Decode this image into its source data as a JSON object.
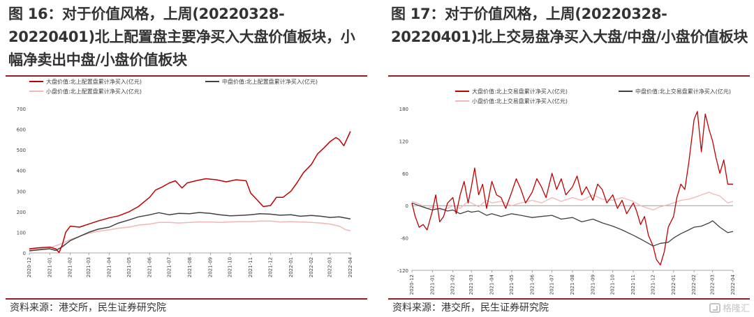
{
  "figures": [
    {
      "title": "图 16：对于价值风格，上周(20220328-20220401)北上配置盘主要净买入大盘价值板块，小幅净卖出中盘/小盘价值板块"
    },
    {
      "title": "图 17：对于价值风格，上周(20220328-20220401)北上交易盘净买入大盘/中盘/小盘价值板块"
    }
  ],
  "source": "资料来源：港交所，民生证券研究院",
  "watermark": "格隆汇",
  "colors": {
    "large": "#c00000",
    "mid": "#404040",
    "small": "#f2b6b6",
    "accent": "#9b1b1e",
    "text": "#333333"
  },
  "chart_data": [
    {
      "type": "line",
      "ylim": [
        0,
        700
      ],
      "yticks": [
        0,
        100,
        200,
        300,
        400,
        500,
        600,
        700
      ],
      "xlim": [
        "2020-12",
        "2022-04"
      ],
      "xticks": [
        "2020-12",
        "2021-01",
        "2021-02",
        "2021-03",
        "2021-04",
        "2021-05",
        "2021-06",
        "2021-07",
        "2021-08",
        "2021-09",
        "2021-10",
        "2021-11",
        "2021-12",
        "2022-01",
        "2022-02",
        "2022-03",
        "2022-04"
      ],
      "legend": "top",
      "series": [
        {
          "name": "大盘价值:北上配置盘累计净买入(亿元)",
          "color": "#c00000",
          "width": 1.5,
          "x": [
            "2020-12-01",
            "2020-12-15",
            "2021-01-01",
            "2021-01-10",
            "2021-01-15",
            "2021-01-20",
            "2021-01-25",
            "2021-02-01",
            "2021-02-15",
            "2021-03-01",
            "2021-03-15",
            "2021-04-01",
            "2021-04-15",
            "2021-05-01",
            "2021-05-15",
            "2021-06-01",
            "2021-06-10",
            "2021-06-20",
            "2021-07-01",
            "2021-07-10",
            "2021-07-20",
            "2021-07-28",
            "2021-08-10",
            "2021-08-25",
            "2021-09-10",
            "2021-09-25",
            "2021-10-10",
            "2021-10-25",
            "2021-11-01",
            "2021-11-10",
            "2021-11-20",
            "2021-12-01",
            "2021-12-10",
            "2021-12-20",
            "2022-01-01",
            "2022-01-10",
            "2022-01-20",
            "2022-02-01",
            "2022-02-10",
            "2022-02-20",
            "2022-03-01",
            "2022-03-10",
            "2022-03-15",
            "2022-03-22",
            "2022-04-01"
          ],
          "y": [
            20,
            25,
            28,
            20,
            2,
            40,
            100,
            130,
            125,
            140,
            155,
            170,
            180,
            200,
            225,
            270,
            305,
            320,
            340,
            350,
            315,
            340,
            350,
            360,
            355,
            345,
            355,
            350,
            290,
            260,
            225,
            230,
            270,
            270,
            300,
            340,
            390,
            430,
            480,
            510,
            540,
            560,
            550,
            520,
            590
          ]
        },
        {
          "name": "中盘价值:北上配置盘累计净买入(亿元)",
          "color": "#404040",
          "width": 1.5,
          "x": [
            "2020-12-01",
            "2020-12-15",
            "2021-01-01",
            "2021-01-10",
            "2021-01-20",
            "2021-02-01",
            "2021-02-15",
            "2021-03-01",
            "2021-03-15",
            "2021-04-01",
            "2021-04-15",
            "2021-05-01",
            "2021-05-15",
            "2021-06-01",
            "2021-06-15",
            "2021-07-01",
            "2021-07-15",
            "2021-08-01",
            "2021-08-15",
            "2021-09-01",
            "2021-09-15",
            "2021-10-01",
            "2021-10-15",
            "2021-11-01",
            "2021-11-15",
            "2021-12-01",
            "2021-12-15",
            "2022-01-01",
            "2022-01-15",
            "2022-02-01",
            "2022-02-15",
            "2022-03-01",
            "2022-03-15",
            "2022-04-01"
          ],
          "y": [
            10,
            15,
            20,
            12,
            30,
            60,
            80,
            100,
            115,
            125,
            145,
            160,
            175,
            185,
            195,
            185,
            192,
            190,
            196,
            192,
            185,
            180,
            182,
            185,
            190,
            188,
            183,
            185,
            178,
            182,
            178,
            172,
            175,
            165
          ]
        },
        {
          "name": "小盘价值:北上配置盘累计净买入(亿元)",
          "color": "#f2b6b6",
          "width": 1.5,
          "x": [
            "2020-12-01",
            "2020-12-15",
            "2021-01-01",
            "2021-01-15",
            "2021-02-01",
            "2021-02-15",
            "2021-03-01",
            "2021-03-15",
            "2021-04-01",
            "2021-04-15",
            "2021-05-01",
            "2021-05-15",
            "2021-06-01",
            "2021-06-15",
            "2021-07-01",
            "2021-07-15",
            "2021-08-01",
            "2021-08-15",
            "2021-09-01",
            "2021-09-15",
            "2021-10-01",
            "2021-10-15",
            "2021-11-01",
            "2021-11-15",
            "2021-12-01",
            "2021-12-15",
            "2022-01-01",
            "2022-01-15",
            "2022-02-01",
            "2022-02-15",
            "2022-03-01",
            "2022-03-15",
            "2022-03-25",
            "2022-04-01"
          ],
          "y": [
            15,
            20,
            25,
            40,
            65,
            80,
            95,
            105,
            112,
            120,
            125,
            135,
            140,
            148,
            148,
            145,
            148,
            150,
            150,
            148,
            150,
            152,
            152,
            155,
            155,
            150,
            152,
            150,
            148,
            145,
            140,
            130,
            112,
            108
          ]
        }
      ]
    },
    {
      "type": "line",
      "ylim": [
        -120,
        180
      ],
      "yticks": [
        -120,
        -60,
        0,
        60,
        120,
        180
      ],
      "xlim": [
        "2020-12",
        "2022-04"
      ],
      "xticks": [
        "2020-12",
        "2021-01",
        "2021-02",
        "2021-03",
        "2021-04",
        "2021-05",
        "2021-06",
        "2021-07",
        "2021-08",
        "2021-09",
        "2021-10",
        "2021-11",
        "2021-12",
        "2022-01",
        "2022-02",
        "2022-03",
        "2022-04"
      ],
      "legend": "top",
      "series": [
        {
          "name": "大盘价值:北上交易盘累计净买入(亿元)",
          "color": "#c00000",
          "width": 1.3,
          "x": [
            "2020-12-01",
            "2020-12-06",
            "2020-12-12",
            "2020-12-18",
            "2020-12-24",
            "2021-01-01",
            "2021-01-06",
            "2021-01-12",
            "2021-01-18",
            "2021-01-24",
            "2021-02-01",
            "2021-02-06",
            "2021-02-12",
            "2021-02-18",
            "2021-02-24",
            "2021-03-01",
            "2021-03-06",
            "2021-03-12",
            "2021-03-18",
            "2021-03-24",
            "2021-04-01",
            "2021-04-08",
            "2021-04-15",
            "2021-04-22",
            "2021-05-01",
            "2021-05-08",
            "2021-05-15",
            "2021-05-22",
            "2021-06-01",
            "2021-06-08",
            "2021-06-15",
            "2021-06-22",
            "2021-07-01",
            "2021-07-08",
            "2021-07-15",
            "2021-07-22",
            "2021-08-01",
            "2021-08-08",
            "2021-08-15",
            "2021-08-22",
            "2021-09-01",
            "2021-09-08",
            "2021-09-15",
            "2021-09-22",
            "2021-10-01",
            "2021-10-08",
            "2021-10-15",
            "2021-10-22",
            "2021-11-01",
            "2021-11-06",
            "2021-11-12",
            "2021-11-18",
            "2021-11-24",
            "2021-12-01",
            "2021-12-06",
            "2021-12-12",
            "2021-12-18",
            "2021-12-24",
            "2022-01-01",
            "2022-01-06",
            "2022-01-12",
            "2022-01-18",
            "2022-01-24",
            "2022-02-01",
            "2022-02-06",
            "2022-02-12",
            "2022-02-18",
            "2022-02-24",
            "2022-03-01",
            "2022-03-06",
            "2022-03-12",
            "2022-03-18",
            "2022-03-24",
            "2022-04-01"
          ],
          "y": [
            5,
            -20,
            -40,
            -35,
            -45,
            -10,
            20,
            -30,
            -20,
            5,
            15,
            -15,
            20,
            45,
            5,
            35,
            70,
            20,
            40,
            -5,
            45,
            20,
            15,
            -5,
            25,
            50,
            30,
            5,
            25,
            50,
            35,
            15,
            60,
            30,
            50,
            20,
            35,
            55,
            20,
            35,
            10,
            40,
            30,
            5,
            20,
            -5,
            10,
            -15,
            5,
            -10,
            -35,
            -20,
            -55,
            -75,
            -100,
            -110,
            -85,
            -40,
            -20,
            15,
            40,
            30,
            80,
            160,
            175,
            100,
            170,
            140,
            120,
            90,
            60,
            85,
            40,
            40
          ]
        },
        {
          "name": "中盘价值:北上交易盘累计净买入(亿元)",
          "color": "#404040",
          "width": 1.3,
          "x": [
            "2020-12-01",
            "2020-12-12",
            "2020-12-24",
            "2021-01-01",
            "2021-01-12",
            "2021-01-24",
            "2021-02-01",
            "2021-02-12",
            "2021-02-24",
            "2021-03-01",
            "2021-03-12",
            "2021-03-24",
            "2021-04-01",
            "2021-04-15",
            "2021-05-01",
            "2021-05-15",
            "2021-06-01",
            "2021-06-15",
            "2021-07-01",
            "2021-07-15",
            "2021-08-01",
            "2021-08-15",
            "2021-09-01",
            "2021-09-15",
            "2021-10-01",
            "2021-10-15",
            "2021-11-01",
            "2021-11-12",
            "2021-11-24",
            "2021-12-01",
            "2021-12-12",
            "2021-12-24",
            "2022-01-01",
            "2022-01-12",
            "2022-01-24",
            "2022-02-01",
            "2022-02-12",
            "2022-02-24",
            "2022-03-01",
            "2022-03-12",
            "2022-03-24",
            "2022-04-01"
          ],
          "y": [
            5,
            0,
            -5,
            -8,
            -5,
            -10,
            -8,
            -15,
            -10,
            -12,
            -10,
            -18,
            -15,
            -20,
            -15,
            -18,
            -22,
            -20,
            -18,
            -25,
            -22,
            -30,
            -25,
            -32,
            -38,
            -45,
            -55,
            -62,
            -70,
            -75,
            -70,
            -68,
            -60,
            -52,
            -45,
            -40,
            -38,
            -32,
            -28,
            -40,
            -50,
            -48
          ]
        },
        {
          "name": "小盘价值:北上交易盘累计净买入(亿元)",
          "color": "#f2b6b6",
          "width": 1.3,
          "x": [
            "2020-12-01",
            "2020-12-12",
            "2020-12-24",
            "2021-01-01",
            "2021-01-12",
            "2021-01-24",
            "2021-02-01",
            "2021-02-12",
            "2021-02-24",
            "2021-03-01",
            "2021-03-12",
            "2021-03-24",
            "2021-04-01",
            "2021-04-15",
            "2021-05-01",
            "2021-05-15",
            "2021-06-01",
            "2021-06-15",
            "2021-07-01",
            "2021-07-15",
            "2021-08-01",
            "2021-08-15",
            "2021-09-01",
            "2021-09-15",
            "2021-10-01",
            "2021-10-15",
            "2021-11-01",
            "2021-11-12",
            "2021-11-24",
            "2021-12-01",
            "2021-12-12",
            "2021-12-24",
            "2022-01-01",
            "2022-01-12",
            "2022-01-24",
            "2022-02-01",
            "2022-02-12",
            "2022-02-24",
            "2022-03-01",
            "2022-03-12",
            "2022-03-24",
            "2022-04-01"
          ],
          "y": [
            8,
            3,
            -5,
            -2,
            -8,
            -5,
            0,
            -5,
            8,
            5,
            -2,
            10,
            5,
            8,
            0,
            5,
            10,
            5,
            15,
            8,
            15,
            10,
            20,
            12,
            10,
            15,
            8,
            0,
            -5,
            -8,
            -2,
            2,
            5,
            10,
            12,
            15,
            20,
            25,
            22,
            18,
            5,
            8
          ]
        }
      ]
    }
  ]
}
